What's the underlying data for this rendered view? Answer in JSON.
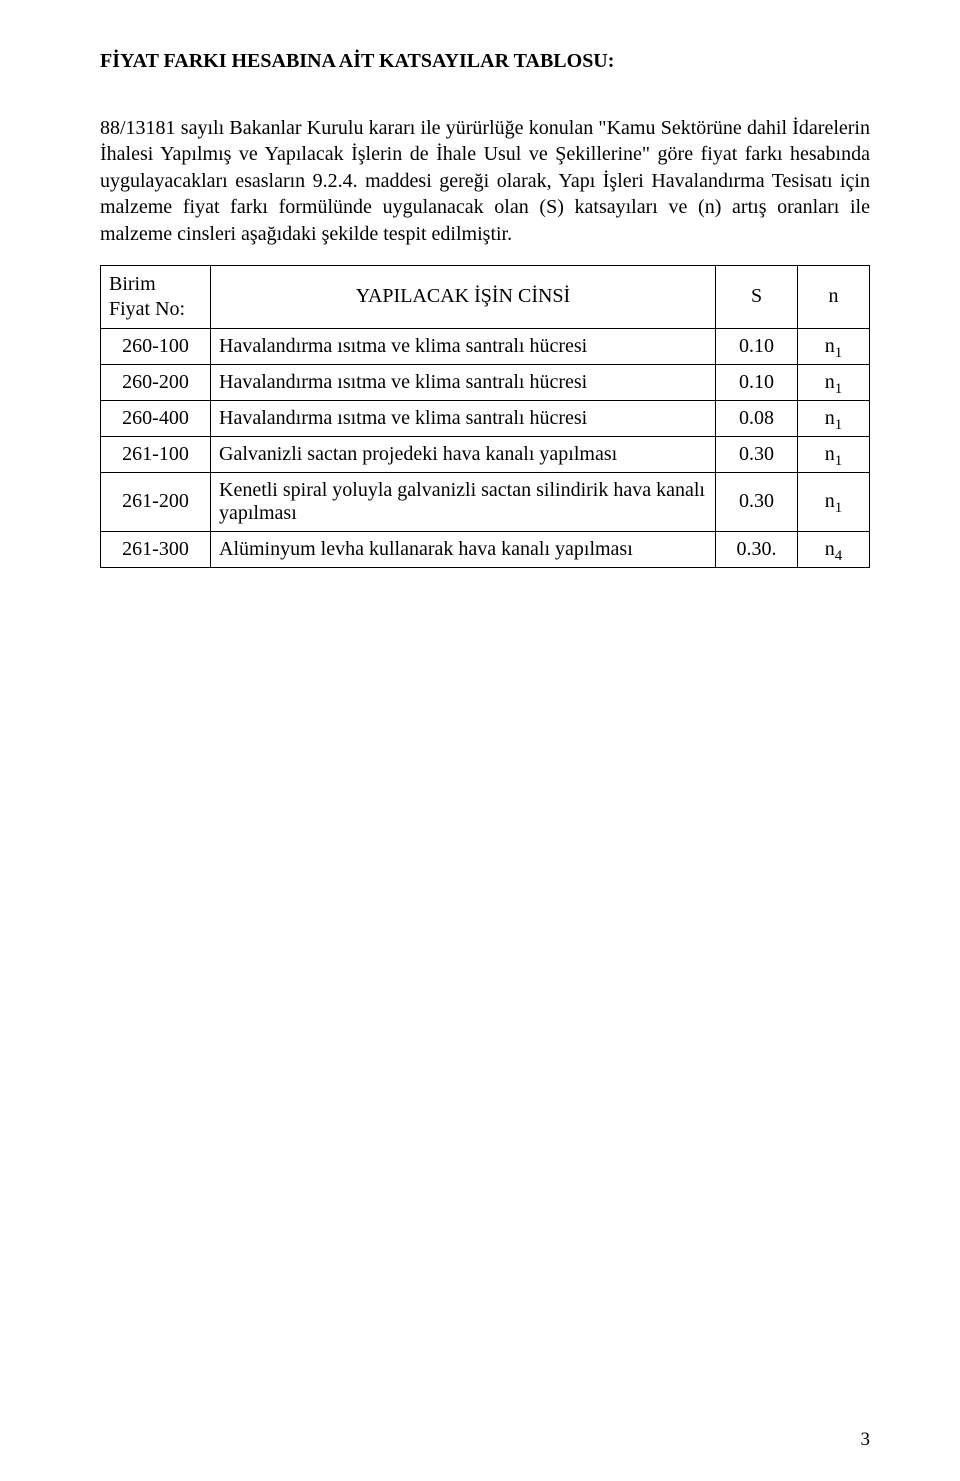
{
  "heading": "FİYAT FARKI HESABINA AİT KATSAYILAR TABLOSU:",
  "paragraph": "88/13181 sayılı Bakanlar Kurulu kararı ile yürürlüğe konulan \"Kamu Sektörüne dahil İdarelerin İhalesi Yapılmış ve Yapılacak İşlerin de İhale Usul ve Şekillerine\" göre fiyat farkı hesabında uygulayacakları esasların 9.2.4.  maddesi gereği olarak, Yapı İşleri Havalandırma Tesisatı için malzeme fiyat farkı formülünde uygulanacak olan (S) katsayıları ve (n) artış oranları ile malzeme cinsleri aşağıdaki şekilde tespit edilmiştir.",
  "table": {
    "header": {
      "bfno_line1": "Birim",
      "bfno_line2": "Fiyat No:",
      "desc": "YAPILACAK İŞİN  CİNSİ",
      "s": "S",
      "n": "n"
    },
    "rows": [
      {
        "bfno": "260-100",
        "desc": "Havalandırma ısıtma ve klima santralı hücresi",
        "s": "0.10",
        "n_main": "n",
        "n_sub": "1"
      },
      {
        "bfno": "260-200",
        "desc": "Havalandırma ısıtma ve klima santralı hücresi",
        "s": "0.10",
        "n_main": "n",
        "n_sub": "1"
      },
      {
        "bfno": "260-400",
        "desc": "Havalandırma ısıtma ve klima santralı hücresi",
        "s": "0.08",
        "n_main": "n",
        "n_sub": "1"
      },
      {
        "bfno": "261-100",
        "desc": "Galvanizli sactan projedeki hava kanalı yapılması",
        "s": "0.30",
        "n_main": "n",
        "n_sub": "1"
      },
      {
        "bfno": "261-200",
        "desc": "Kenetli spiral yoluyla galvanizli sactan silindirik hava kanalı yapılması",
        "s": "0.30",
        "n_main": "n",
        "n_sub": "1"
      },
      {
        "bfno": "261-300",
        "desc": "Alüminyum levha kullanarak hava kanalı yapılması",
        "s": "0.30.",
        "n_main": "n",
        "n_sub": "4"
      }
    ]
  },
  "page_number": "3"
}
